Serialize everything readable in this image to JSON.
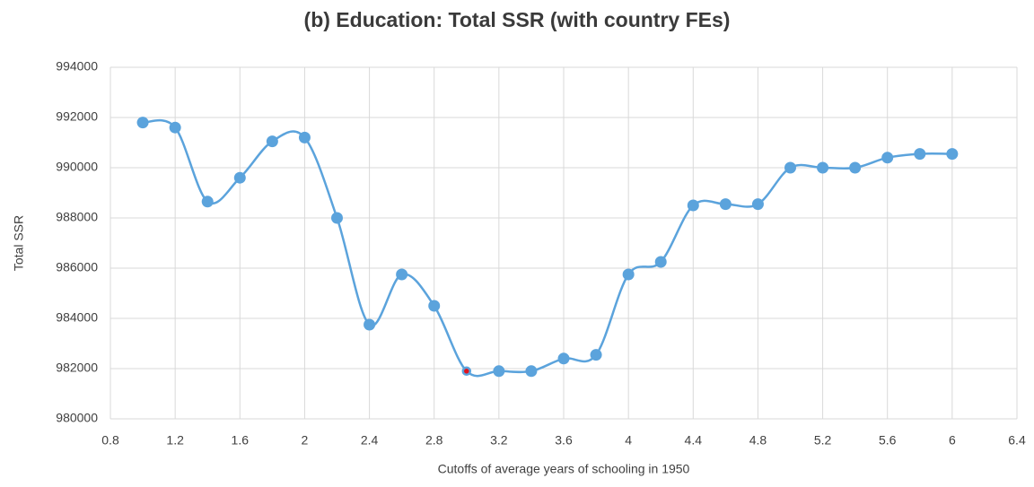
{
  "chart_data": {
    "type": "line",
    "title": "(b) Education: Total SSR (with country FEs)",
    "x_label": "Cutoffs of average years of schooling in 1950",
    "y_label": "Total SSR",
    "x": [
      1.0,
      1.2,
      1.4,
      1.6,
      1.8,
      2.0,
      2.2,
      2.4,
      2.6,
      2.8,
      3.0,
      3.2,
      3.4,
      3.6,
      3.8,
      4.0,
      4.2,
      4.4,
      4.6,
      4.8,
      5.0,
      5.2,
      5.4,
      5.6,
      5.8,
      6.0
    ],
    "series": [
      {
        "name": "Total SSR",
        "color": "#5ba3dc",
        "values": [
          991800,
          991600,
          988650,
          989600,
          991050,
          991200,
          988000,
          983750,
          985750,
          984500,
          981900,
          981900,
          981900,
          982400,
          982550,
          985750,
          986250,
          988500,
          988550,
          988550,
          990000,
          990000,
          990000,
          990400,
          990550,
          990550
        ]
      }
    ],
    "highlight_x": 3.0,
    "highlight_color": "#e0141e",
    "xlim": [
      0.8,
      6.4
    ],
    "xticks": [
      0.8,
      1.2,
      1.6,
      2,
      2.4,
      2.8,
      3.2,
      3.6,
      4,
      4.4,
      4.8,
      5.2,
      5.6,
      6,
      6.4
    ],
    "ylim": [
      980000,
      994000
    ],
    "yticks": [
      980000,
      982000,
      984000,
      986000,
      988000,
      990000,
      992000,
      994000
    ],
    "grid": true,
    "smooth": true
  }
}
